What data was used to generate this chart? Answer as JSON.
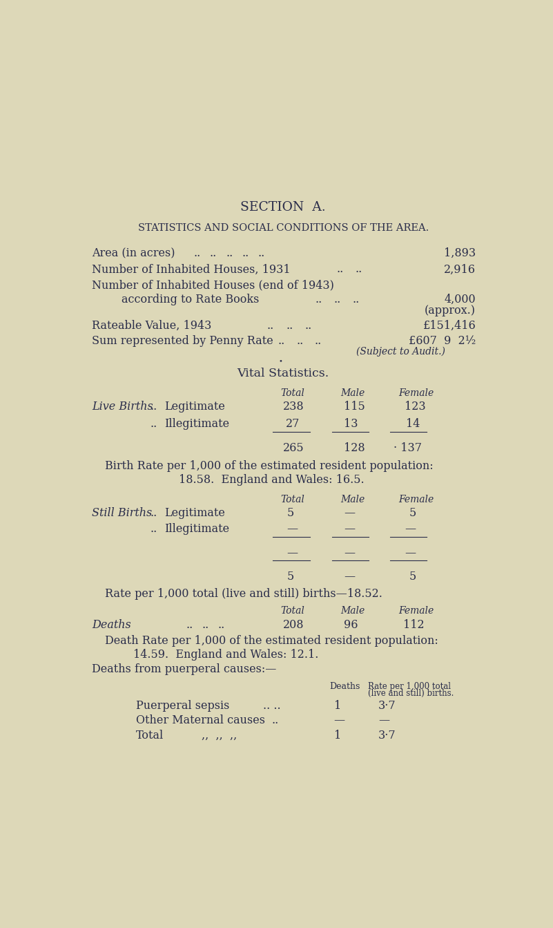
{
  "bg_color": "#ddd8b8",
  "text_color": "#2a2d4a",
  "title1": "SECTION  A.",
  "title2_parts": [
    "S",
    "TATISTICS ",
    "AND ",
    "S",
    "OCIAL ",
    "C",
    "ONDITIONS ",
    "OF ",
    "THE ",
    "A",
    "REA."
  ],
  "title2_smallcaps": "STATISTICS AND SOCIAL CONDITIONS OF THE AREA.",
  "area_value": "1,893",
  "houses1931_value": "2,916",
  "houses1943_value": "4,000",
  "approx": "(approx.)",
  "rateable_value": "£151,416",
  "penny_rate_value": "£607  9  2½",
  "subject_audit": "(Subject to Audit.)",
  "vital_stats_header": "Vital Statistics.",
  "col_headers": [
    "Total",
    "Male",
    "Female"
  ],
  "live_births_legit": [
    "238",
    "115",
    "123"
  ],
  "live_births_illeg": [
    "27",
    "13",
    "14"
  ],
  "live_births_total": [
    "265",
    "128",
    "· 137"
  ],
  "birth_rate_line1": "Birth Rate per 1,000 of the estimated resident population:",
  "birth_rate_line2": "18.58.  England and Wales: 16.5.",
  "still_births_legit": [
    "5",
    "—",
    "5"
  ],
  "still_births_illeg": [
    "—",
    "—",
    "—"
  ],
  "still_births_sep": [
    "—",
    "—",
    "—"
  ],
  "still_births_total": [
    "5",
    "—",
    "5"
  ],
  "still_rate_text": "Rate per 1,000 total (live and still) births—18.52.",
  "deaths_vals": [
    "208",
    "96",
    "112"
  ],
  "death_rate_line1": "Death Rate per 1,000 of the estimated resident population:",
  "death_rate_line2": "14.59.  England and Wales: 12.1.",
  "deaths_puerperal_hdr": "Deaths from puerperal causes:—",
  "puerperal_col1": "Deaths",
  "puerperal_col2a": "Rate per 1,000 total",
  "puerperal_col2b": "(live and still) births.",
  "puerperal_rows": [
    {
      "label": "Puerperal sepsis",
      "dots": ".. ..",
      "deaths": "1",
      "rate": "3·7"
    },
    {
      "label": "Other Maternal causes",
      "dots": "..",
      "deaths": "—",
      "rate": "—"
    },
    {
      "label": "Total",
      "dots": ",,  ,,  ,,",
      "deaths": "1",
      "rate": "3·7"
    }
  ]
}
